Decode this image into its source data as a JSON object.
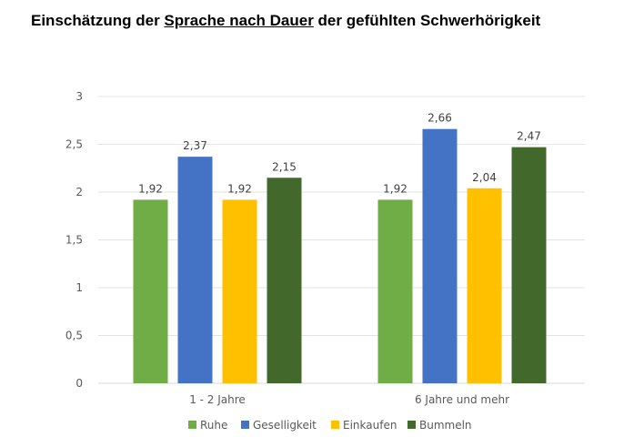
{
  "title": {
    "part1": "Einschätzung der ",
    "part2": "Sprache nach Dauer",
    "part3": " der gefühlten Schwerhörigkeit"
  },
  "chart_data": {
    "type": "bar",
    "title": "Einschätzung der Sprache nach Dauer der gefühlten Schwerhörigkeit",
    "categories": [
      "1 - 2 Jahre",
      "6 Jahre und mehr"
    ],
    "series": [
      {
        "name": "Ruhe",
        "values": [
          1.92,
          1.92
        ],
        "labels": [
          "1,92",
          "1,92"
        ],
        "color": "#70ad47"
      },
      {
        "name": "Geselligkeit",
        "values": [
          2.37,
          2.66
        ],
        "labels": [
          "2,37",
          "2,66"
        ],
        "color": "#4472c4"
      },
      {
        "name": "Einkaufen",
        "values": [
          1.92,
          2.04
        ],
        "labels": [
          "1,92",
          "2,04"
        ],
        "color": "#ffc000"
      },
      {
        "name": "Bummeln",
        "values": [
          2.15,
          2.47
        ],
        "labels": [
          "2,15",
          "2,47"
        ],
        "color": "#43682b"
      }
    ],
    "yticks": [
      0,
      0.5,
      1,
      1.5,
      2,
      2.5,
      3
    ],
    "ytick_labels": [
      "0",
      "0,5",
      "1",
      "1,5",
      "2",
      "2,5",
      "3"
    ],
    "ylim": [
      0,
      3
    ],
    "grid": true,
    "legend_position": "bottom",
    "xlabel": "",
    "ylabel": ""
  }
}
